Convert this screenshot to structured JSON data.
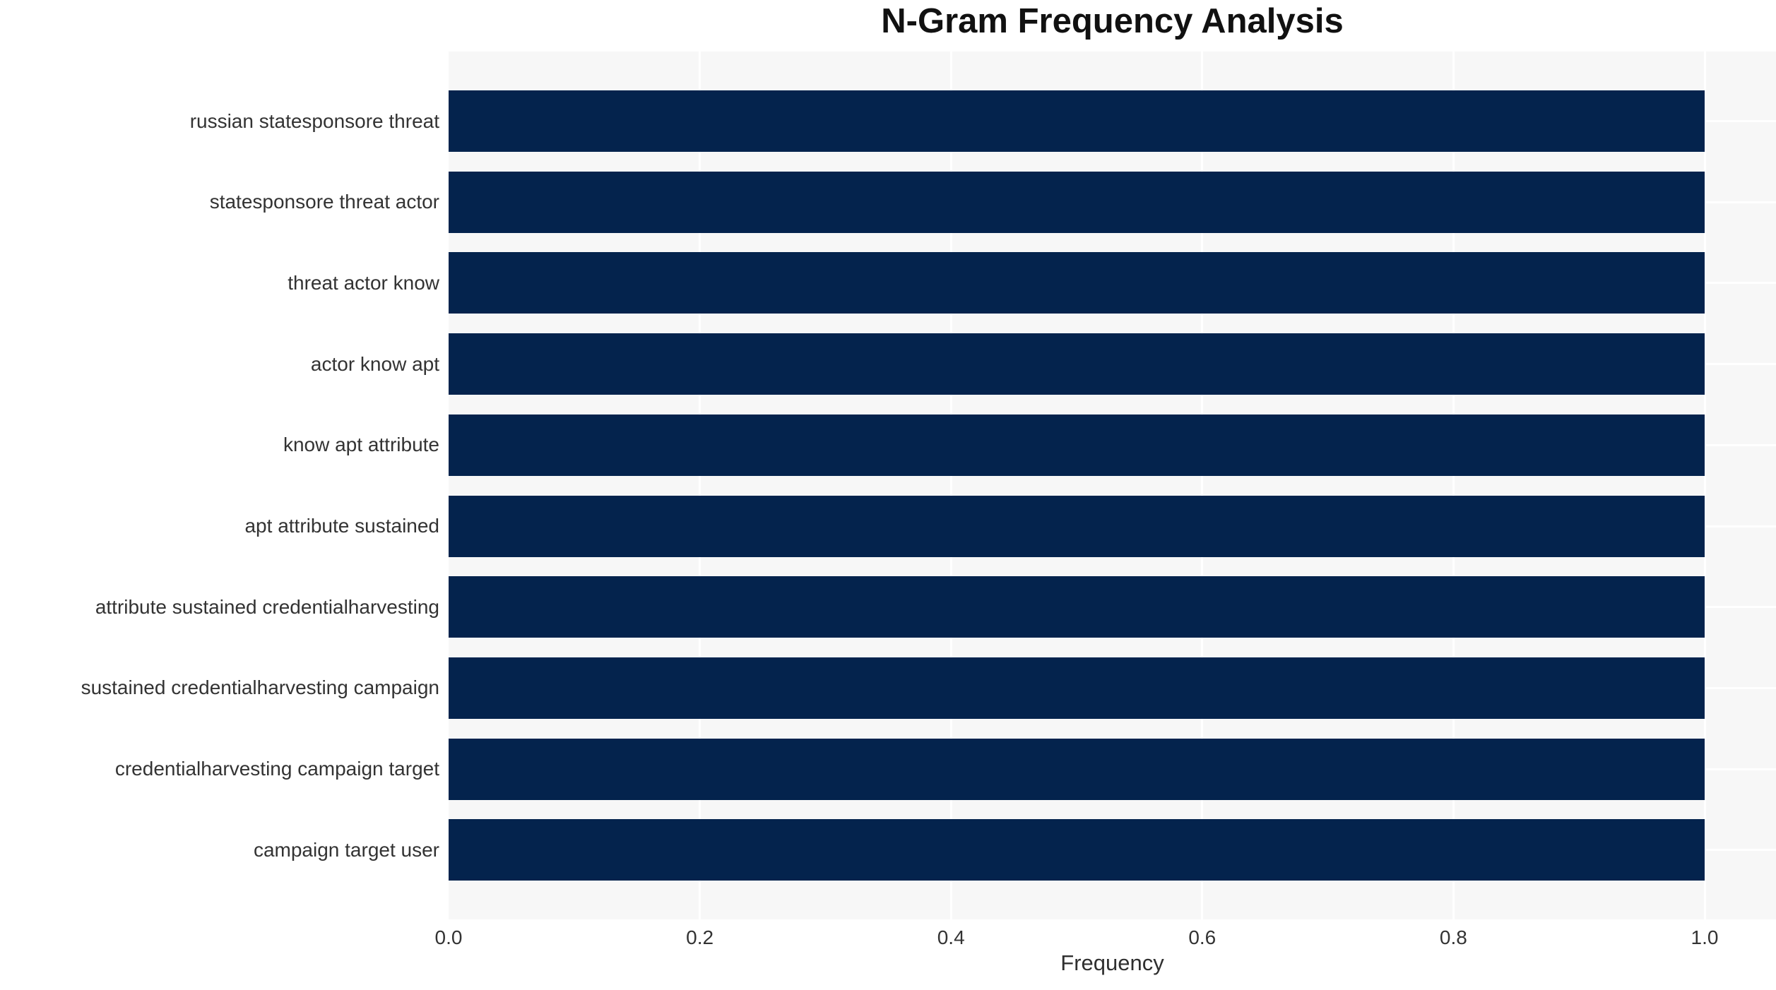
{
  "chart_data": {
    "type": "bar",
    "orientation": "horizontal",
    "title": "N-Gram Frequency Analysis",
    "xlabel": "Frequency",
    "ylabel": "",
    "categories": [
      "russian statesponsore threat",
      "statesponsore threat actor",
      "threat actor know",
      "actor know apt",
      "know apt attribute",
      "apt attribute sustained",
      "attribute sustained credentialharvesting",
      "sustained credentialharvesting campaign",
      "credentialharvesting campaign target",
      "campaign target user"
    ],
    "values": [
      1.0,
      1.0,
      1.0,
      1.0,
      1.0,
      1.0,
      1.0,
      1.0,
      1.0,
      1.0
    ],
    "x_ticks": [
      0.0,
      0.2,
      0.4,
      0.6,
      0.8,
      1.0
    ],
    "x_tick_labels": [
      "0.0",
      "0.2",
      "0.4",
      "0.6",
      "0.8",
      "1.0"
    ],
    "xlim": [
      0,
      1.057
    ],
    "grid": "white gridlines: vertical at x ticks, horizontal at each category center, drawn under bars",
    "legend": "none",
    "colors": {
      "bar": "#04234d",
      "plot_background": "#f7f7f7",
      "gridline": "#ffffff",
      "title_text": "#111111",
      "axis_text": "#333333",
      "figure_background": "#ffffff"
    }
  }
}
